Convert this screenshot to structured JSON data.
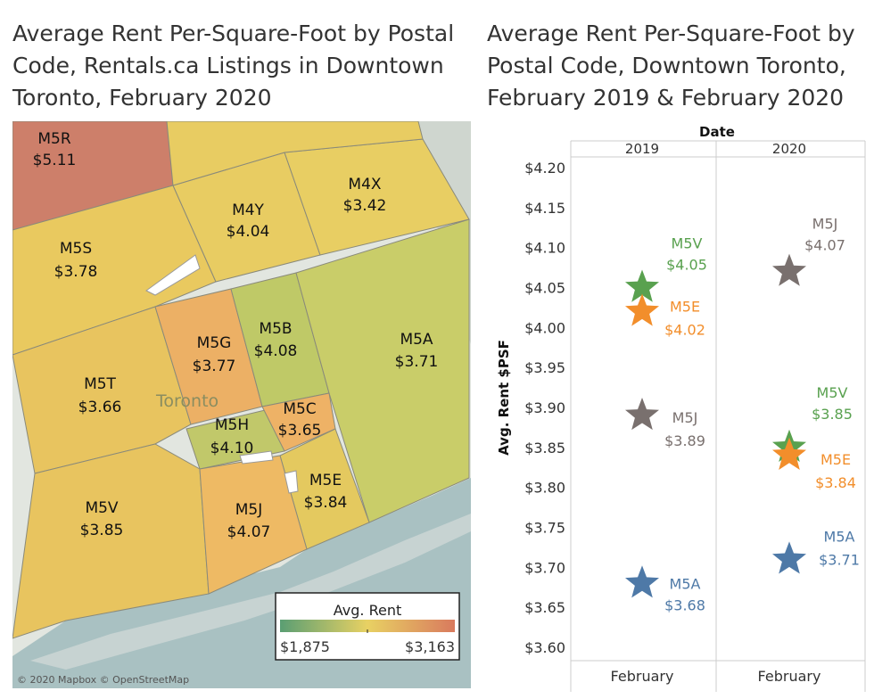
{
  "map_panel": {
    "title": "Average Rent Per-Square-Foot by Postal Code, Rentals.ca Listings in Downtown Toronto, February 2020",
    "city_label": "Toronto",
    "attribution": "© 2020 Mapbox © OpenStreetMap",
    "legend": {
      "title": "Avg. Rent",
      "min": "$1,875",
      "max": "$3,163",
      "color_low": "#5a9e73",
      "color_mid": "#e8d163",
      "color_high": "#d97a5e"
    },
    "zones": [
      {
        "code": "M5R",
        "value": "$5.11",
        "color": "#cd7f6a"
      },
      {
        "code": "M4Y",
        "value": "$4.04",
        "color": "#e8cc62"
      },
      {
        "code": "M4X",
        "value": "$3.42",
        "color": "#e8ce63"
      },
      {
        "code": "M5S",
        "value": "$3.78",
        "color": "#e9c95f"
      },
      {
        "code": "M5G",
        "value": "$3.77",
        "color": "#ecb065"
      },
      {
        "code": "M5B",
        "value": "$4.08",
        "color": "#bfc967"
      },
      {
        "code": "M5A",
        "value": "$3.71",
        "color": "#c9cd69"
      },
      {
        "code": "M5T",
        "value": "$3.66",
        "color": "#e8c45f"
      },
      {
        "code": "M5H",
        "value": "$4.10",
        "color": "#c1c86a"
      },
      {
        "code": "M5C",
        "value": "$3.65",
        "color": "#eeb266"
      },
      {
        "code": "M5E",
        "value": "$3.84",
        "color": "#e4c95f"
      },
      {
        "code": "M5V",
        "value": "$3.85",
        "color": "#e8c45f"
      },
      {
        "code": "M5J",
        "value": "$4.07",
        "color": "#eeba64"
      }
    ]
  },
  "chart_data": {
    "type": "scatter",
    "title": "Average Rent Per-Square-Foot by Postal Code, Downtown Toronto, February 2019 & February 2020",
    "column_header": "Date",
    "columns": [
      "2019",
      "2020"
    ],
    "xcategories": [
      "February",
      "February"
    ],
    "ylabel": "Avg. Rent $PSF",
    "ylim": [
      3.6,
      4.2
    ],
    "yticks": [
      "$4.20",
      "$4.15",
      "$4.10",
      "$4.05",
      "$4.00",
      "$3.95",
      "$3.90",
      "$3.85",
      "$3.80",
      "$3.75",
      "$3.70",
      "$3.65",
      "$3.60"
    ],
    "marker": "star",
    "series": [
      {
        "name": "M5V",
        "color": "#59a14f",
        "points": [
          {
            "year": "2019",
            "y": 4.05,
            "label": "$4.05"
          },
          {
            "year": "2020",
            "y": 3.85,
            "label": "$3.85"
          }
        ]
      },
      {
        "name": "M5E",
        "color": "#f28e2b",
        "points": [
          {
            "year": "2019",
            "y": 4.02,
            "label": "$4.02"
          },
          {
            "year": "2020",
            "y": 3.84,
            "label": "$3.84"
          }
        ]
      },
      {
        "name": "M5J",
        "color": "#79706e",
        "points": [
          {
            "year": "2019",
            "y": 3.89,
            "label": "$3.89"
          },
          {
            "year": "2020",
            "y": 4.07,
            "label": "$4.07"
          }
        ]
      },
      {
        "name": "M5A",
        "color": "#4e79a7",
        "points": [
          {
            "year": "2019",
            "y": 3.68,
            "label": "$3.68"
          },
          {
            "year": "2020",
            "y": 3.71,
            "label": "$3.71"
          }
        ]
      }
    ]
  }
}
